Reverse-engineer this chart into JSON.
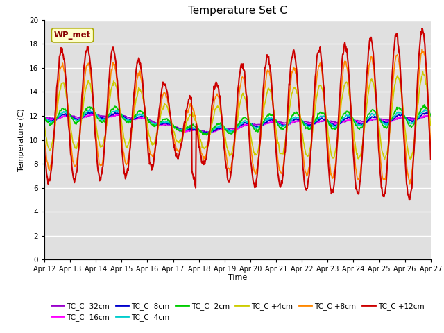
{
  "title": "Temperature Set C",
  "xlabel": "Time",
  "ylabel": "Temperature (C)",
  "ylim": [
    0,
    20
  ],
  "yticks": [
    0,
    2,
    4,
    6,
    8,
    10,
    12,
    14,
    16,
    18,
    20
  ],
  "x_labels": [
    "Apr 12",
    "Apr 13",
    "Apr 14",
    "Apr 15",
    "Apr 16",
    "Apr 17",
    "Apr 18",
    "Apr 19",
    "Apr 20",
    "Apr 21",
    "Apr 22",
    "Apr 23",
    "Apr 24",
    "Apr 25",
    "Apr 26",
    "Apr 27"
  ],
  "wp_met_label": "WP_met",
  "background_color": "#e0e0e0",
  "series": [
    {
      "label": "TC_C -32cm",
      "color": "#9900cc",
      "lw": 1.2
    },
    {
      "label": "TC_C -16cm",
      "color": "#ff00ff",
      "lw": 1.2
    },
    {
      "label": "TC_C -8cm",
      "color": "#0000cc",
      "lw": 1.2
    },
    {
      "label": "TC_C -4cm",
      "color": "#00cccc",
      "lw": 1.2
    },
    {
      "label": "TC_C -2cm",
      "color": "#00cc00",
      "lw": 1.2
    },
    {
      "label": "TC_C +4cm",
      "color": "#cccc00",
      "lw": 1.2
    },
    {
      "label": "TC_C +8cm",
      "color": "#ff8800",
      "lw": 1.2
    },
    {
      "label": "TC_C +12cm",
      "color": "#cc0000",
      "lw": 1.5
    }
  ]
}
